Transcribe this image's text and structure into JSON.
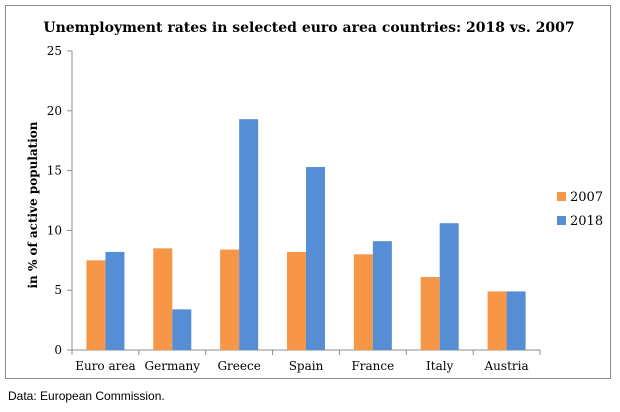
{
  "chart_data": {
    "type": "bar",
    "title": "Unemployment rates in selected euro area countries: 2018 vs. 2007",
    "xlabel": "",
    "ylabel": "in % of active population",
    "ylim": [
      0,
      25
    ],
    "yticks": [
      0,
      5,
      10,
      15,
      20,
      25
    ],
    "categories": [
      "Euro area",
      "Germany",
      "Greece",
      "Spain",
      "France",
      "Italy",
      "Austria"
    ],
    "series": [
      {
        "name": "2007",
        "color": "#f79646",
        "values": [
          7.5,
          8.5,
          8.4,
          8.2,
          8.0,
          6.1,
          4.9
        ]
      },
      {
        "name": "2018",
        "color": "#558ed5",
        "values": [
          8.2,
          3.4,
          19.3,
          15.3,
          9.1,
          10.6,
          4.9
        ]
      }
    ],
    "grid": false,
    "legend_position": "right"
  },
  "footer": {
    "source": "Data: European Commission."
  }
}
